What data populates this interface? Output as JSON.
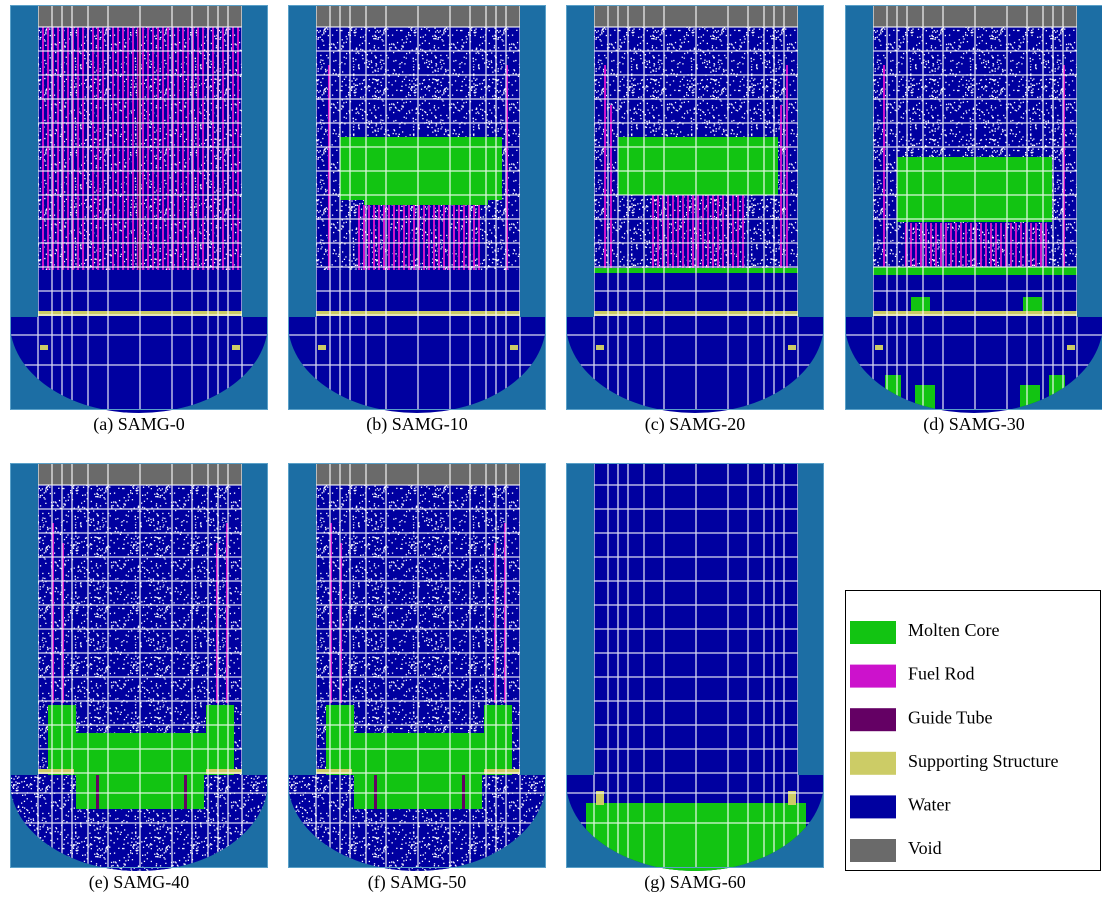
{
  "panels": [
    {
      "caption": "(a) SAMG-0"
    },
    {
      "caption": "(b) SAMG-10"
    },
    {
      "caption": "(c) SAMG-20"
    },
    {
      "caption": "(d) SAMG-30"
    },
    {
      "caption": "(e) SAMG-40"
    },
    {
      "caption": "(f) SAMG-50"
    },
    {
      "caption": "(g) SAMG-60"
    }
  ],
  "legend": [
    {
      "label": "Molten Core",
      "color": "#12c412"
    },
    {
      "label": "Fuel Rod",
      "color": "#cc12cc"
    },
    {
      "label": "Guide Tube",
      "color": "#640064"
    },
    {
      "label": "Supporting Structure",
      "color": "#cccc66"
    },
    {
      "label": "Water",
      "color": "#0000a0"
    },
    {
      "label": "Void",
      "color": "#6a6a6a"
    }
  ]
}
